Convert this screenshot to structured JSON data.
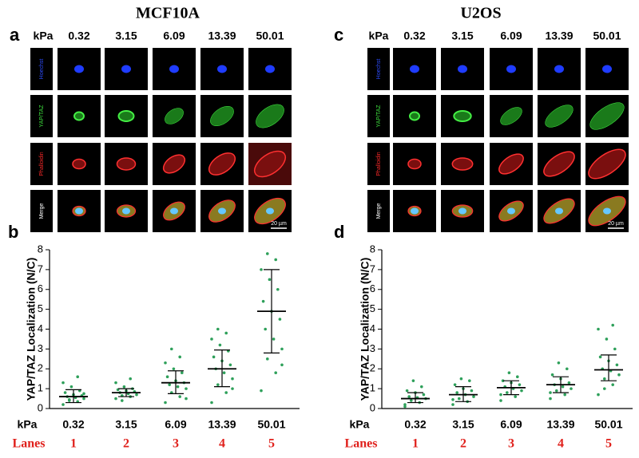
{
  "image_panels": [
    {
      "label": "a",
      "title": "MCF10A",
      "header": "kPa",
      "stiffness": [
        "0.32",
        "3.15",
        "6.09",
        "13.39",
        "50.01"
      ],
      "channels": [
        "Hoechst",
        "YAP/TAZ",
        "Phalloidin",
        "Merge"
      ],
      "scale_bar": "20 µm"
    },
    {
      "label": "c",
      "title": "U2OS",
      "header": "kPa",
      "stiffness": [
        "0.32",
        "3.15",
        "6.09",
        "13.39",
        "50.01"
      ],
      "channels": [
        "Hoechst",
        "YAP/TAZ",
        "Phalloidin",
        "Merge"
      ],
      "scale_bar": "20 µm"
    }
  ],
  "chart_data": [
    {
      "label": "b",
      "type": "scatter",
      "y_label": "YAP/TAZ Localization (N/C)",
      "ylim": [
        0,
        8
      ],
      "yticks": [
        0,
        1,
        2,
        3,
        4,
        5,
        6,
        7,
        8
      ],
      "x_title": "kPa",
      "categories": [
        "0.32",
        "3.15",
        "6.09",
        "13.39",
        "50.01"
      ],
      "lanes_title": "Lanes",
      "lanes": [
        "1",
        "2",
        "3",
        "4",
        "5"
      ],
      "color": "#2ea05a",
      "groups": [
        {
          "points": [
            0.2,
            0.35,
            0.45,
            0.5,
            0.55,
            0.6,
            0.65,
            0.7,
            0.8,
            0.9,
            1.1,
            1.3,
            1.6,
            0.4,
            0.75
          ],
          "mean": 0.6,
          "sd_low": 0.3,
          "sd_high": 0.95
        },
        {
          "points": [
            0.5,
            0.6,
            0.65,
            0.7,
            0.75,
            0.8,
            0.85,
            0.9,
            0.95,
            1.0,
            1.1,
            1.3,
            1.5,
            0.4
          ],
          "mean": 0.8,
          "sd_low": 0.6,
          "sd_high": 1.0
        },
        {
          "points": [
            0.3,
            0.6,
            0.8,
            1.0,
            1.1,
            1.2,
            1.3,
            1.4,
            1.6,
            1.8,
            2.0,
            2.3,
            2.6,
            3.0,
            0.5
          ],
          "mean": 1.3,
          "sd_low": 0.75,
          "sd_high": 1.9
        },
        {
          "points": [
            0.3,
            0.8,
            1.2,
            1.5,
            1.8,
            2.0,
            2.2,
            2.4,
            2.6,
            2.9,
            3.2,
            3.5,
            3.8,
            4.0,
            1.0
          ],
          "mean": 2.0,
          "sd_low": 1.1,
          "sd_high": 2.95
        },
        {
          "points": [
            0.9,
            1.8,
            2.5,
            3.0,
            3.5,
            4.0,
            4.5,
            4.9,
            5.4,
            6.0,
            6.5,
            7.0,
            7.5,
            7.8,
            2.2
          ],
          "mean": 4.9,
          "sd_low": 2.8,
          "sd_high": 7.0
        }
      ]
    },
    {
      "label": "d",
      "type": "scatter",
      "y_label": "YAP/TAZ Localization (N/C)",
      "ylim": [
        0,
        8
      ],
      "yticks": [
        0,
        1,
        2,
        3,
        4,
        5,
        6,
        7,
        8
      ],
      "x_title": "kPa",
      "categories": [
        "0.32",
        "3.15",
        "6.09",
        "13.39",
        "50.01"
      ],
      "lanes_title": "Lanes",
      "lanes": [
        "1",
        "2",
        "3",
        "4",
        "5"
      ],
      "color": "#2ea05a",
      "groups": [
        {
          "points": [
            0.1,
            0.3,
            0.4,
            0.5,
            0.55,
            0.6,
            0.7,
            0.8,
            0.9,
            1.1,
            1.4,
            0.2
          ],
          "mean": 0.5,
          "sd_low": 0.3,
          "sd_high": 0.8
        },
        {
          "points": [
            0.2,
            0.35,
            0.5,
            0.6,
            0.7,
            0.8,
            0.9,
            1.0,
            1.2,
            1.4,
            1.5,
            0.45
          ],
          "mean": 0.7,
          "sd_low": 0.35,
          "sd_high": 1.1
        },
        {
          "points": [
            0.4,
            0.6,
            0.8,
            0.9,
            1.0,
            1.1,
            1.2,
            1.3,
            1.4,
            1.6,
            1.8,
            0.7
          ],
          "mean": 1.05,
          "sd_low": 0.7,
          "sd_high": 1.4
        },
        {
          "points": [
            0.5,
            0.7,
            0.9,
            1.0,
            1.1,
            1.2,
            1.3,
            1.5,
            1.7,
            2.0,
            2.3,
            0.8
          ],
          "mean": 1.2,
          "sd_low": 0.8,
          "sd_high": 1.6
        },
        {
          "points": [
            0.7,
            1.2,
            1.5,
            1.7,
            1.9,
            2.0,
            2.2,
            2.4,
            2.6,
            3.0,
            3.5,
            4.0,
            4.2,
            1.0
          ],
          "mean": 1.95,
          "sd_low": 1.4,
          "sd_high": 2.7
        }
      ]
    }
  ]
}
